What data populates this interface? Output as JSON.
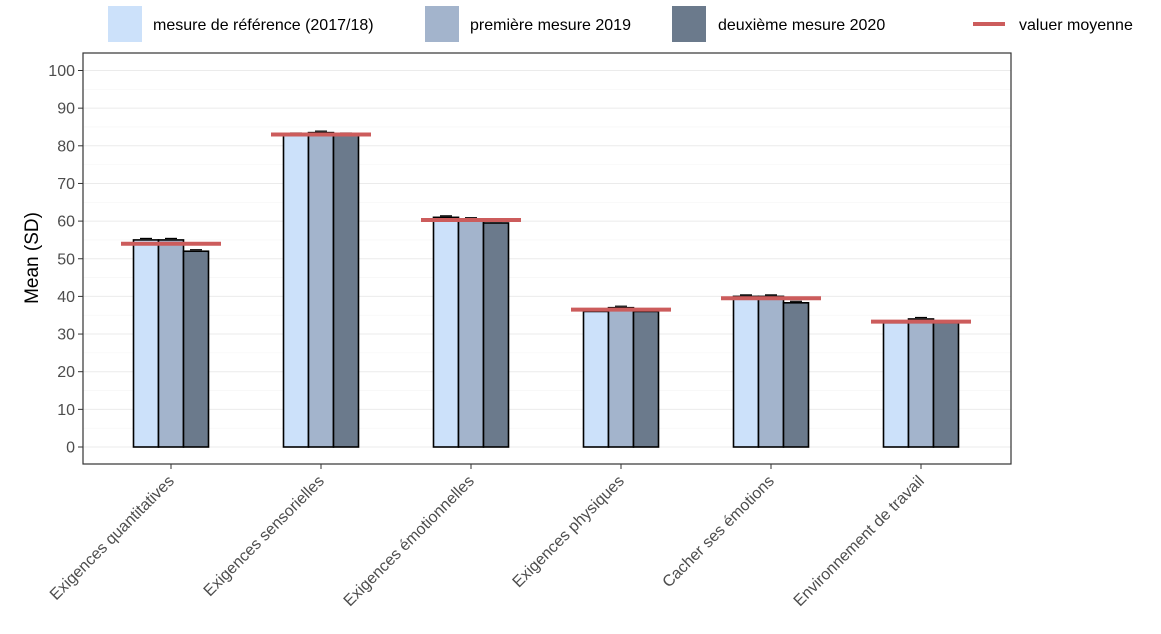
{
  "chart_data": {
    "type": "bar",
    "ylabel": "Mean (SD)",
    "xlabel": "",
    "ylim": [
      0,
      103
    ],
    "yticks": [
      0,
      10,
      20,
      30,
      40,
      50,
      60,
      70,
      80,
      90,
      100
    ],
    "grid": true,
    "legend_position": "top",
    "categories": [
      "Exigences quantitatives",
      "Exigences sensorielles",
      "Exigences émotionnelles",
      "Exigences physiques",
      "Cacher ses émotions",
      "Environnement de travail"
    ],
    "series": [
      {
        "name": "mesure de référence (2017/18)",
        "color": "#cce1fa",
        "values": [
          55,
          83,
          61,
          36,
          40,
          33
        ]
      },
      {
        "name": "première mesure 2019",
        "color": "#a3b4cc",
        "values": [
          55,
          83.5,
          60.5,
          37,
          40,
          34
        ]
      },
      {
        "name": "deuxième mesure 2020",
        "color": "#6b7a8c",
        "values": [
          52,
          83,
          59.5,
          36,
          38.3,
          33
        ]
      }
    ],
    "mean_line": {
      "name": "valuer moyenne",
      "color": "#cc5c5c",
      "values": [
        54,
        83,
        60.3,
        36.5,
        39.5,
        33.3
      ]
    }
  }
}
